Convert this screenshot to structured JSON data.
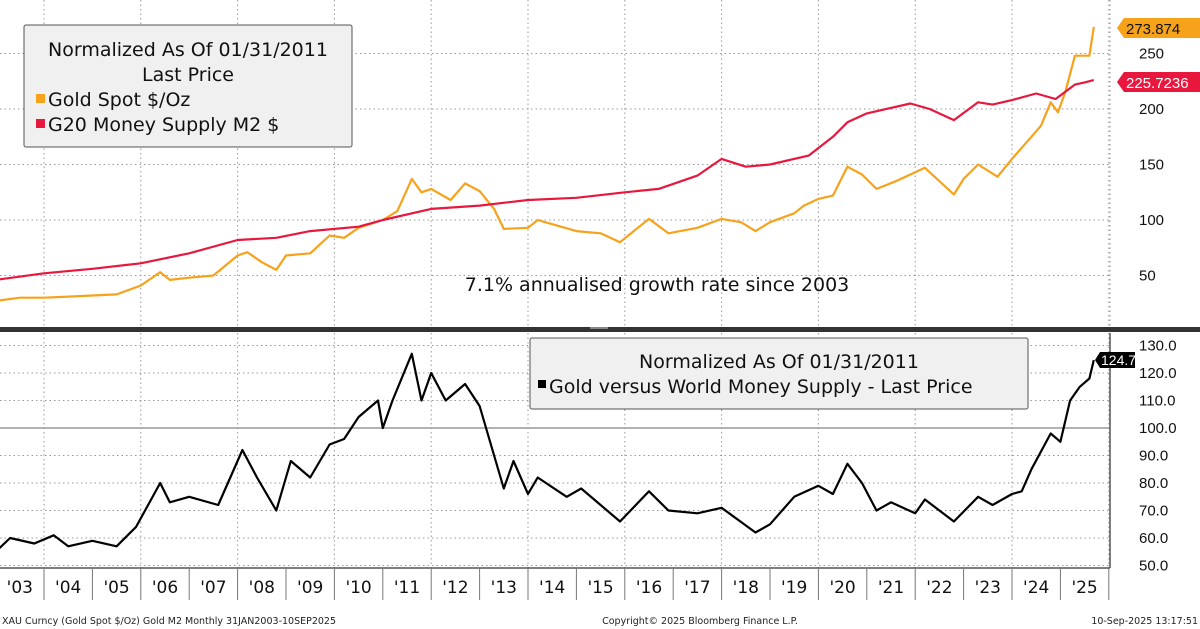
{
  "colors": {
    "gold": "#f7a21b",
    "m2": "#e8173e",
    "ratio": "#000000",
    "grid": "#9a9a9a",
    "legend_bg": "#f0f0f0"
  },
  "chart_data": [
    {
      "type": "line",
      "panel": "top",
      "legend": {
        "title": "Normalized As Of 01/31/2011",
        "subtitle": "Last Price",
        "placement": "top-left"
      },
      "annotation": "7.1% annualised growth rate since 2003",
      "y_ticks": [
        "250",
        "200",
        "150",
        "100",
        "50"
      ],
      "y_tick_values": [
        250,
        200,
        150,
        100,
        50
      ],
      "ylim": [
        20,
        295
      ],
      "grid": true,
      "series": [
        {
          "name": "Gold Spot $/Oz",
          "color_key": "gold",
          "last_label": "273.874",
          "x": [
            2003.0,
            2003.5,
            2004.0,
            2004.5,
            2005.0,
            2005.5,
            2006.0,
            2006.4,
            2006.6,
            2007.0,
            2007.5,
            2008.0,
            2008.2,
            2008.5,
            2008.8,
            2009.0,
            2009.5,
            2009.9,
            2010.2,
            2010.5,
            2011.0,
            2011.3,
            2011.6,
            2011.8,
            2012.0,
            2012.4,
            2012.7,
            2013.0,
            2013.3,
            2013.5,
            2014.0,
            2014.2,
            2014.6,
            2015.0,
            2015.5,
            2015.9,
            2016.5,
            2016.9,
            2017.5,
            2018.0,
            2018.4,
            2018.7,
            2019.0,
            2019.5,
            2019.7,
            2020.0,
            2020.3,
            2020.6,
            2020.9,
            2021.2,
            2021.6,
            2022.2,
            2022.5,
            2022.8,
            2023.0,
            2023.3,
            2023.7,
            2024.0,
            2024.2,
            2024.4,
            2024.6,
            2024.8,
            2024.95,
            2025.1,
            2025.3,
            2025.6,
            2025.69
          ],
          "y": [
            27,
            30,
            30,
            31,
            32,
            33,
            41,
            53,
            46,
            48,
            50,
            68,
            71,
            62,
            55,
            68,
            70,
            86,
            84,
            93,
            100,
            108,
            137,
            125,
            128,
            118,
            133,
            126,
            110,
            92,
            93,
            100,
            95,
            90,
            88,
            80,
            101,
            88,
            93,
            101,
            98,
            90,
            98,
            106,
            113,
            119,
            122,
            148,
            141,
            128,
            135,
            147,
            135,
            123,
            137,
            150,
            139,
            155,
            165,
            175,
            185,
            206,
            197,
            215,
            248,
            248,
            274
          ]
        },
        {
          "name": "G20 Money Supply M2 $",
          "color_key": "m2",
          "last_label": "225.7236",
          "x": [
            2003.0,
            2004.0,
            2005.0,
            2006.0,
            2007.0,
            2008.0,
            2008.8,
            2009.5,
            2010.5,
            2011.0,
            2012.0,
            2013.0,
            2014.0,
            2015.0,
            2016.0,
            2016.7,
            2017.5,
            2018.0,
            2018.5,
            2019.0,
            2019.8,
            2020.3,
            2020.6,
            2021.0,
            2021.9,
            2022.3,
            2022.8,
            2023.3,
            2023.6,
            2024.0,
            2024.5,
            2024.9,
            2025.3,
            2025.5,
            2025.69
          ],
          "y": [
            46,
            52,
            56,
            61,
            70,
            82,
            84,
            90,
            94,
            100,
            110,
            113,
            118,
            120,
            125,
            128,
            140,
            155,
            148,
            150,
            158,
            175,
            188,
            196,
            205,
            200,
            190,
            206,
            204,
            208,
            214,
            209,
            222,
            224,
            226
          ]
        }
      ]
    },
    {
      "type": "line",
      "panel": "bottom",
      "legend": {
        "title": "Normalized As Of 01/31/2011",
        "placement": "top-right"
      },
      "y_ticks": [
        "130.0",
        "120.0",
        "110.0",
        "100.0",
        "90.0",
        "80.0",
        "70.0",
        "60.0",
        "50.0"
      ],
      "y_tick_values": [
        130,
        120,
        110,
        100,
        90,
        80,
        70,
        60,
        50
      ],
      "ylim": [
        48.5,
        133
      ],
      "reference_line": 100,
      "grid": true,
      "series": [
        {
          "name": "Gold versus World Money Supply - Last Price",
          "color_key": "ratio",
          "last_label": "124.7",
          "x": [
            2003.0,
            2003.3,
            2003.8,
            2004.2,
            2004.5,
            2005.0,
            2005.5,
            2005.9,
            2006.4,
            2006.6,
            2007.0,
            2007.6,
            2008.1,
            2008.4,
            2008.8,
            2009.1,
            2009.5,
            2009.9,
            2010.2,
            2010.5,
            2010.9,
            2011.0,
            2011.2,
            2011.6,
            2011.8,
            2012.0,
            2012.3,
            2012.7,
            2013.0,
            2013.3,
            2013.5,
            2013.7,
            2014.0,
            2014.2,
            2014.8,
            2015.1,
            2015.9,
            2016.5,
            2016.9,
            2017.5,
            2018.0,
            2018.7,
            2019.0,
            2019.5,
            2020.0,
            2020.3,
            2020.6,
            2020.9,
            2021.2,
            2021.5,
            2022.0,
            2022.2,
            2022.8,
            2023.3,
            2023.6,
            2024.0,
            2024.2,
            2024.4,
            2024.8,
            2025.0,
            2025.2,
            2025.4,
            2025.6,
            2025.69
          ],
          "y": [
            55,
            60,
            58,
            61,
            57,
            59,
            57,
            64,
            80,
            73,
            75,
            72,
            92,
            82,
            70,
            88,
            82,
            94,
            96,
            104,
            110,
            100,
            110,
            127,
            110,
            120,
            110,
            116,
            108,
            90,
            78,
            88,
            76,
            82,
            75,
            78,
            66,
            77,
            70,
            69,
            71,
            62,
            65,
            75,
            79,
            76,
            87,
            80,
            70,
            73,
            69,
            74,
            66,
            75,
            72,
            76,
            77,
            85,
            98,
            95,
            110,
            115,
            118,
            124.7
          ]
        }
      ]
    }
  ],
  "x_axis": {
    "tick_labels": [
      "'03",
      "'04",
      "'05",
      "'06",
      "'07",
      "'08",
      "'09",
      "'10",
      "'11",
      "'12",
      "'13",
      "'14",
      "'15",
      "'16",
      "'17",
      "'18",
      "'19",
      "'20",
      "'21",
      "'22",
      "'23",
      "'24",
      "'25"
    ]
  },
  "footer": {
    "left": "XAU Curncy (Gold Spot  $/Oz) Gold M2  Monthly 31JAN2003-10SEP2025",
    "center": "Copyright© 2025 Bloomberg Finance L.P.",
    "right": "10-Sep-2025 13:17:51"
  }
}
